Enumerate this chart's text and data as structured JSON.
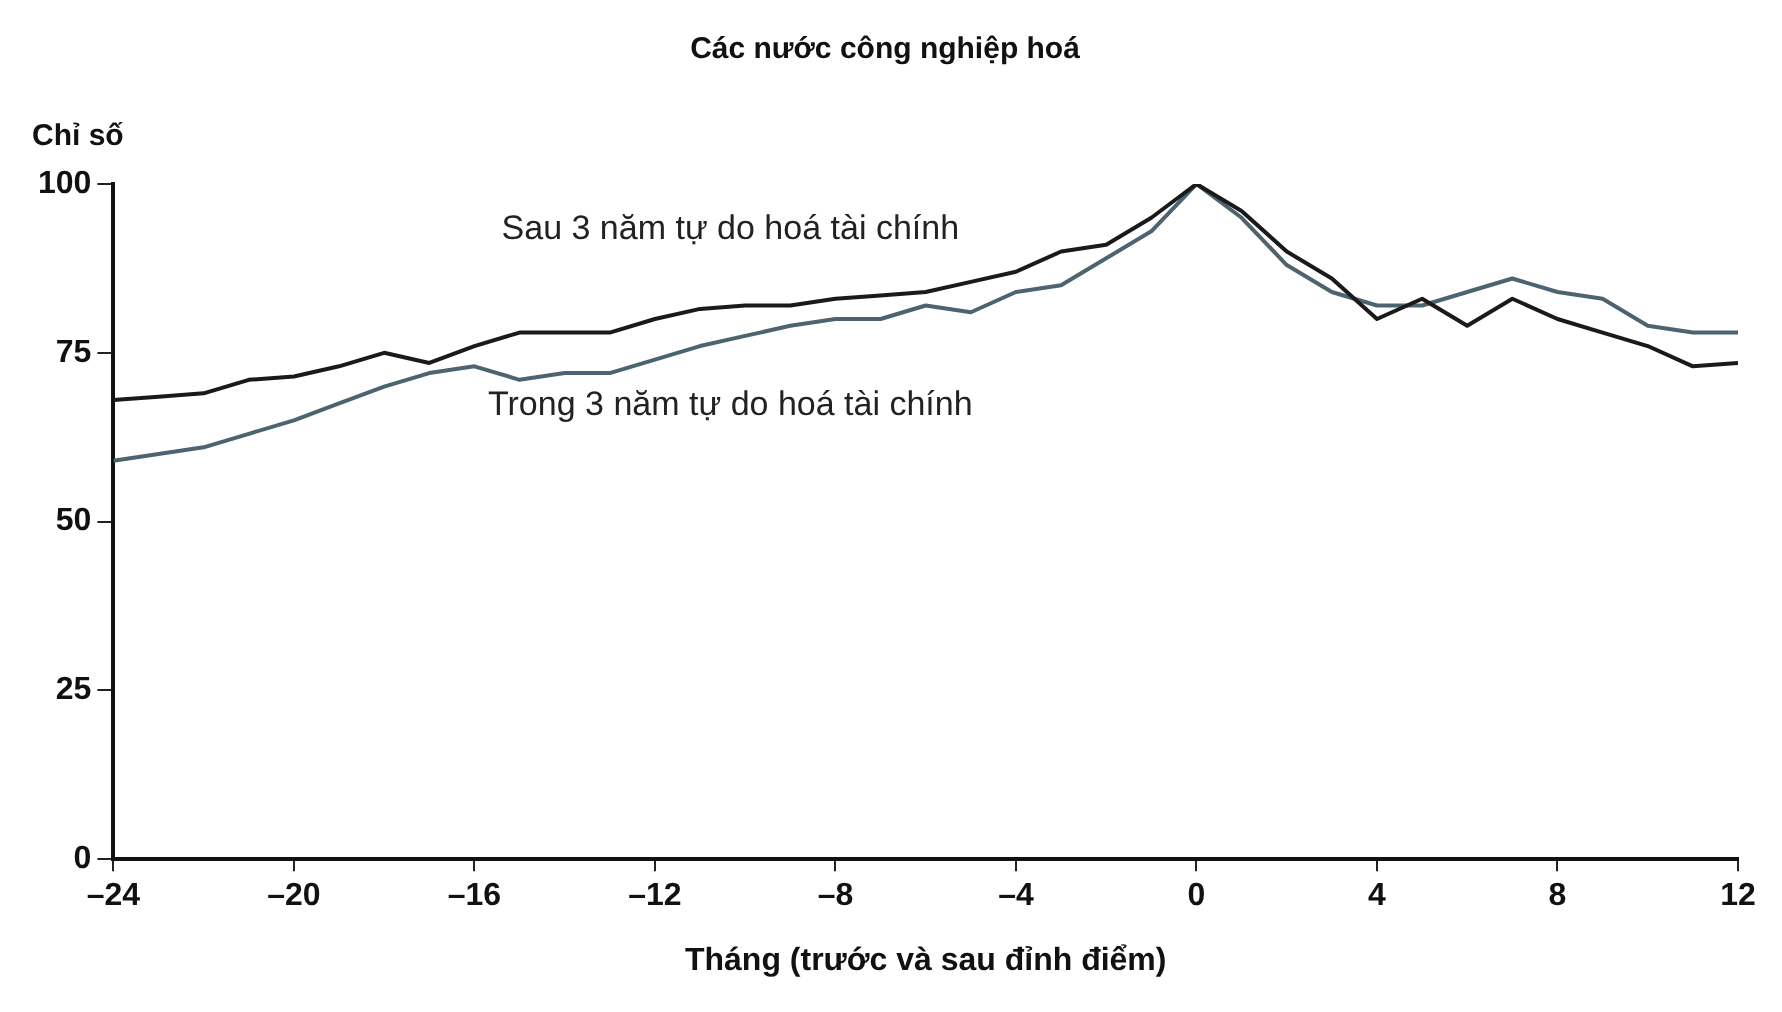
{
  "chart_data": {
    "type": "line",
    "title": "Các nước công nghiệp hoá",
    "xlabel": "Tháng (trước và sau đỉnh điểm)",
    "ylabel": "Chỉ số",
    "x": [
      -24,
      -23,
      -22,
      -21,
      -20,
      -19,
      -18,
      -17,
      -16,
      -15,
      -14,
      -13,
      -12,
      -11,
      -10,
      -9,
      -8,
      -7,
      -6,
      -5,
      -4,
      -3,
      -2,
      -1,
      0,
      1,
      2,
      3,
      4,
      5,
      6,
      7,
      8,
      9,
      10,
      11,
      12
    ],
    "series": [
      {
        "name": "Sau 3 năm tự do hoá tài chính",
        "color": "#1a1a1a",
        "values": [
          68,
          68.5,
          69,
          71,
          71.5,
          73,
          75,
          73.5,
          76,
          78,
          78,
          78,
          80,
          81.5,
          82,
          82,
          83,
          83.5,
          84,
          85.5,
          87,
          90,
          91,
          95,
          100,
          96,
          90,
          86,
          80,
          83,
          79,
          83,
          80,
          78,
          76,
          73,
          73.5
        ]
      },
      {
        "name": "Trong 3 năm tự do hoá tài chính",
        "color": "#4d6470",
        "values": [
          59,
          60,
          61,
          63,
          65,
          67.5,
          70,
          72,
          73,
          71,
          72,
          72,
          74,
          76,
          77.5,
          79,
          80,
          80,
          82,
          81,
          84,
          85,
          89,
          93,
          100,
          95,
          88,
          84,
          82,
          82,
          84,
          86,
          84,
          83,
          79,
          78,
          78
        ]
      }
    ],
    "xlim": [
      -24,
      12
    ],
    "xticks": [
      {
        "value": -24,
        "label": "–24"
      },
      {
        "value": -20,
        "label": "–20"
      },
      {
        "value": -16,
        "label": "–16"
      },
      {
        "value": -12,
        "label": "–12"
      },
      {
        "value": -8,
        "label": "–8"
      },
      {
        "value": -4,
        "label": "–4"
      },
      0,
      4,
      8,
      12
    ],
    "ylim": [
      0,
      100
    ],
    "yticks": [
      0,
      25,
      50,
      75,
      100
    ],
    "grid": false,
    "legend": false,
    "marker": "none",
    "line_style": "solid"
  }
}
